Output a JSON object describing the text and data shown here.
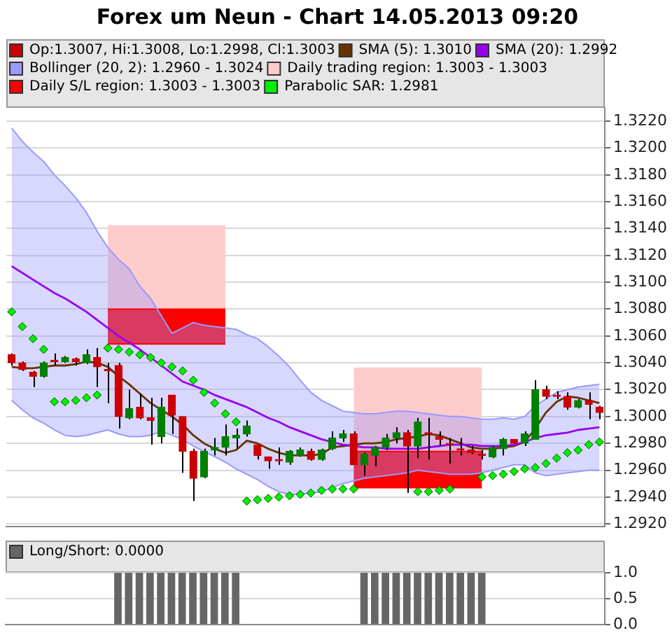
{
  "chart_data": [
    {
      "type": "candlestick",
      "title": "Forex um Neun - Chart 14.05.2013 09:20",
      "categories": [
        null,
        null,
        null,
        null,
        null,
        null,
        null,
        null,
        null,
        null,
        null,
        null,
        null,
        null,
        null,
        null,
        null,
        null,
        null,
        null,
        null,
        null,
        null,
        null,
        null,
        null,
        null,
        null,
        null,
        null,
        null,
        null,
        null,
        null,
        null,
        null,
        null,
        null,
        null,
        null,
        null,
        null,
        null,
        null,
        null,
        null,
        null,
        null,
        null,
        null,
        null,
        null,
        null,
        null,
        null,
        null
      ],
      "ylim": [
        1.2918,
        1.323
      ],
      "yticks": [
        {
          "value": 1.292,
          "label": "1.2920"
        },
        {
          "value": 1.294,
          "label": "1.2940"
        },
        {
          "value": 1.296,
          "label": "1.2960"
        },
        {
          "value": 1.298,
          "label": "1.2980"
        },
        {
          "value": 1.3,
          "label": "1.3000"
        },
        {
          "value": 1.302,
          "label": "1.3020"
        },
        {
          "value": 1.304,
          "label": "1.3040"
        },
        {
          "value": 1.306,
          "label": "1.3060"
        },
        {
          "value": 1.308,
          "label": "1.3080"
        },
        {
          "value": 1.31,
          "label": "1.3100"
        },
        {
          "value": 1.312,
          "label": "1.3120"
        },
        {
          "value": 1.314,
          "label": "1.3140"
        },
        {
          "value": 1.316,
          "label": "1.3160"
        },
        {
          "value": 1.318,
          "label": "1.3180"
        },
        {
          "value": 1.32,
          "label": "1.3200"
        },
        {
          "value": 1.322,
          "label": "1.3220"
        }
      ],
      "grid": "y",
      "legend": "top left",
      "tick_labels": "y",
      "series": [
        {
          "name": "Op:1.3007, Hi:1.3008, Lo:1.2998, Cl:1.3003",
          "color": "#cc0000",
          "colors": [
            "#cc0000",
            "#cc0000",
            "#cc0000",
            "#008000",
            "#cc0000",
            "#008000",
            "#cc0000",
            "#008000",
            "#cc0000",
            "#cc0000",
            "#cc0000",
            "#008000",
            "#cc0000",
            "#cc0000",
            "#008000",
            "#cc0000",
            "#cc0000",
            "#cc0000",
            "#008000",
            "#008000",
            "#008000",
            "#008000",
            "#008000",
            "#cc0000",
            "#cc0000",
            "#cc0000",
            "#008000",
            "#008000",
            "#cc0000",
            "#008000",
            "#008000",
            "#008000",
            "#cc0000",
            "#008000",
            "#008000",
            "#008000",
            "#008000",
            "#cc0000",
            "#008000",
            "#cc0000",
            "#cc0000",
            "#cc0000",
            "#cc0000",
            "#cc0000",
            "#cc0000",
            "#008000",
            "#008000",
            "#cc0000",
            "#008000",
            "#008000",
            "#cc0000",
            "#cc0000",
            "#cc0000",
            "#008000",
            "#cc0000",
            "#cc0000"
          ],
          "ohlc": [
            [
              1.3046,
              1.3047,
              1.3038,
              1.304
            ],
            [
              1.304,
              1.3041,
              1.3034,
              1.3035
            ],
            [
              1.3033,
              1.3034,
              1.3022,
              1.303
            ],
            [
              1.303,
              1.3041,
              1.3029,
              1.304
            ],
            [
              1.3042,
              1.3047,
              1.3038,
              1.3041
            ],
            [
              1.3041,
              1.3045,
              1.304,
              1.3044
            ],
            [
              1.3043,
              1.3044,
              1.3038,
              1.3041
            ],
            [
              1.304,
              1.305,
              1.3039,
              1.3046
            ],
            [
              1.3044,
              1.3051,
              1.3022,
              1.3037
            ],
            [
              1.3035,
              1.304,
              1.301,
              1.3034
            ],
            [
              1.3038,
              1.304,
              1.2991,
              1.3
            ],
            [
              1.2999,
              1.302,
              1.2998,
              1.3006
            ],
            [
              1.3007,
              1.3017,
              1.2998,
              1.2999
            ],
            [
              1.2999,
              1.3014,
              1.2979,
              1.2997
            ],
            [
              1.2985,
              1.3014,
              1.298,
              1.3007
            ],
            [
              1.3016,
              1.3016,
              1.2987,
              1.3001
            ],
            [
              1.3,
              1.3,
              1.2958,
              1.2974
            ],
            [
              1.2974,
              1.2976,
              1.2937,
              1.2954
            ],
            [
              1.2955,
              1.2976,
              1.2954,
              1.2974
            ],
            [
              1.2975,
              1.2984,
              1.2971,
              1.2977
            ],
            [
              1.2977,
              1.2994,
              1.2971,
              1.2985
            ],
            [
              1.2984,
              1.2991,
              1.2976,
              1.2986
            ],
            [
              1.2987,
              1.2997,
              1.2985,
              1.2993
            ],
            [
              1.2979,
              1.2979,
              1.2968,
              1.2971
            ],
            [
              1.297,
              1.297,
              1.2961,
              1.2967
            ],
            [
              1.2968,
              1.2977,
              1.2964,
              1.2967
            ],
            [
              1.2966,
              1.2975,
              1.2964,
              1.2974
            ],
            [
              1.2971,
              1.2977,
              1.297,
              1.2975
            ],
            [
              1.2974,
              1.2976,
              1.2967,
              1.2968
            ],
            [
              1.2968,
              1.2976,
              1.2967,
              1.2975
            ],
            [
              1.2976,
              1.2989,
              1.2975,
              1.2984
            ],
            [
              1.2984,
              1.299,
              1.2981,
              1.2987
            ],
            [
              1.2987,
              1.2989,
              1.2964,
              1.2964
            ],
            [
              1.2964,
              1.2973,
              1.2956,
              1.2972
            ],
            [
              1.2971,
              1.2978,
              1.2963,
              1.2977
            ],
            [
              1.2977,
              1.2987,
              1.2975,
              1.2984
            ],
            [
              1.2984,
              1.2992,
              1.298,
              1.2988
            ],
            [
              1.2988,
              1.299,
              1.2943,
              1.2978
            ],
            [
              1.2978,
              1.2999,
              1.2969,
              1.2996
            ],
            [
              1.2988,
              1.2999,
              1.2968,
              1.2987
            ],
            [
              1.2985,
              1.2989,
              1.2978,
              1.2983
            ],
            [
              1.298,
              1.2984,
              1.2965,
              1.2979
            ],
            [
              1.2976,
              1.2984,
              1.2971,
              1.2975
            ],
            [
              1.2975,
              1.2978,
              1.2972,
              1.2973
            ],
            [
              1.2972,
              1.2975,
              1.2968,
              1.2971
            ],
            [
              1.297,
              1.2978,
              1.2969,
              1.2977
            ],
            [
              1.2976,
              1.2984,
              1.2971,
              1.2983
            ],
            [
              1.2983,
              1.2983,
              1.298,
              1.298
            ],
            [
              1.298,
              1.2989,
              1.2978,
              1.2987
            ],
            [
              1.2983,
              1.3027,
              1.2983,
              1.302
            ],
            [
              1.302,
              1.3023,
              1.3013,
              1.3015
            ],
            [
              1.3016,
              1.3019,
              1.3013,
              1.3015
            ],
            [
              1.3015,
              1.3018,
              1.3005,
              1.3007
            ],
            [
              1.3007,
              1.3013,
              1.3006,
              1.3012
            ],
            [
              1.3012,
              1.3018,
              1.2998,
              1.3009
            ],
            [
              1.3007,
              1.3008,
              1.2998,
              1.3003
            ]
          ]
        },
        {
          "name": "SMA (5): 1.3010",
          "type": "line",
          "color": "#663300",
          "values": [
            1.3037,
            1.3036,
            1.3036,
            1.3037,
            1.3038,
            1.3038,
            1.3039,
            1.3041,
            1.304,
            1.3037,
            1.303,
            1.3024,
            1.3017,
            1.301,
            1.3005,
            1.3,
            1.2994,
            1.2986,
            1.298,
            1.2976,
            1.2973,
            1.2975,
            1.2982,
            1.298,
            1.2976,
            1.2973,
            1.2971,
            1.2971,
            1.2971,
            1.2972,
            1.2977,
            1.2978,
            1.2979,
            1.298,
            1.298,
            1.2981,
            1.2983,
            1.2984,
            1.2985,
            1.2987,
            1.2986,
            1.2983,
            1.298,
            1.2977,
            1.2976,
            1.2976,
            1.2977,
            1.2978,
            1.2981,
            1.2991,
            1.3003,
            1.3011,
            1.3015,
            1.3014,
            1.3012,
            1.301
          ]
        },
        {
          "name": "SMA (20): 1.2992",
          "type": "line",
          "color": "#9900ee",
          "values": [
            1.3112,
            1.3107,
            1.3102,
            1.3097,
            1.3092,
            1.3088,
            1.3083,
            1.3078,
            1.3072,
            1.3066,
            1.306,
            1.3055,
            1.305,
            1.3044,
            1.3038,
            1.3032,
            1.3026,
            1.3023,
            1.302,
            1.3016,
            1.3013,
            1.301,
            1.3007,
            1.3003,
            1.2999,
            1.2996,
            1.2992,
            1.2989,
            1.2986,
            1.2983,
            1.2981,
            1.2979,
            1.2978,
            1.2977,
            1.2977,
            1.2976,
            1.2976,
            1.2976,
            1.2976,
            1.2977,
            1.2978,
            1.2979,
            1.2979,
            1.2979,
            1.2978,
            1.2978,
            1.2978,
            1.2979,
            1.2981,
            1.2984,
            1.2986,
            1.2987,
            1.2988,
            1.299,
            1.2991,
            1.2992
          ]
        },
        {
          "type": "line",
          "color": "#9999ff",
          "values": [
            1.3012,
            1.3005,
            1.2999,
            1.2995,
            1.299,
            1.2986,
            1.2985,
            1.2986,
            1.2988,
            1.299,
            1.2987,
            1.2985,
            1.2985,
            1.2986,
            1.2989,
            1.2986,
            1.2983,
            1.2978,
            1.2974,
            1.297,
            1.2966,
            1.2961,
            1.2957,
            1.2953,
            1.2948,
            1.2944,
            1.2942,
            1.2942,
            1.2943,
            1.2944,
            1.2947,
            1.295,
            1.2952,
            1.2954,
            1.2955,
            1.2956,
            1.2957,
            1.2958,
            1.296,
            1.2959,
            1.2958,
            1.2957,
            1.2957,
            1.2957,
            1.2958,
            1.296,
            1.2962,
            1.2964,
            1.2964,
            1.2958,
            1.2956,
            1.2957,
            1.2958,
            1.2959,
            1.296,
            1.296
          ]
        },
        {
          "name": "Bollinger (20, 2): 1.2960 - 1.3024",
          "type": "area",
          "color": "#9999ff",
          "values": [
            1.3215,
            1.3205,
            1.3197,
            1.319,
            1.318,
            1.3172,
            1.3163,
            1.3152,
            1.3138,
            1.3126,
            1.3117,
            1.311,
            1.3097,
            1.3088,
            1.3075,
            1.3062,
            1.3066,
            1.307,
            1.3068,
            1.3067,
            1.3066,
            1.3065,
            1.3061,
            1.3058,
            1.3052,
            1.3045,
            1.3037,
            1.3027,
            1.3018,
            1.3012,
            1.3008,
            1.3004,
            1.3003,
            1.3002,
            1.3002,
            1.3003,
            1.3004,
            1.3004,
            1.3003,
            1.3002,
            1.3001,
            1.3,
            1.3,
            1.2999,
            1.2998,
            1.2998,
            1.2999,
            1.2998,
            1.3,
            1.3008,
            1.3013,
            1.3018,
            1.302,
            1.3022,
            1.3023,
            1.3024
          ]
        },
        {
          "name": "Daily trading region: 1.3003 - 1.3003",
          "type": "area",
          "color": "#ffcccc",
          "values": [
            null,
            null,
            null,
            null,
            null,
            null,
            null,
            null,
            null,
            1.3142,
            1.3142,
            1.3142,
            1.3142,
            1.3142,
            1.3142,
            1.3142,
            1.3142,
            1.3142,
            1.3142,
            1.3142,
            1.3142,
            null,
            null,
            null,
            null,
            null,
            null,
            null,
            null,
            null,
            null,
            null,
            1.3036,
            1.3036,
            1.3036,
            1.3036,
            1.3036,
            1.3036,
            1.3036,
            1.3036,
            1.3036,
            1.3036,
            1.3036,
            1.3036,
            1.3036,
            null,
            null,
            null,
            null,
            null,
            null,
            null,
            null,
            null,
            null,
            null
          ]
        },
        {
          "type": "line",
          "color": "#ff0000",
          "values": [
            null,
            null,
            null,
            null,
            null,
            null,
            null,
            null,
            null,
            1.3054,
            1.3054,
            1.3054,
            1.3054,
            1.3054,
            1.3054,
            1.3054,
            1.3054,
            1.3054,
            1.3054,
            1.3054,
            1.3054,
            null,
            null,
            null,
            null,
            null,
            null,
            null,
            null,
            null,
            null,
            null,
            1.2947,
            1.2947,
            1.2947,
            1.2947,
            1.2947,
            1.2947,
            1.2947,
            1.2947,
            1.2947,
            1.2947,
            1.2947,
            1.2947,
            1.2947,
            null,
            null,
            null,
            null,
            null,
            null,
            null,
            null,
            null,
            null,
            null
          ]
        },
        {
          "name": "Daily S/L region: 1.3003 - 1.3003",
          "type": "area",
          "color": "#ff0000",
          "values": [
            null,
            null,
            null,
            null,
            null,
            null,
            null,
            null,
            null,
            1.308,
            1.308,
            1.308,
            1.308,
            1.308,
            1.308,
            1.308,
            1.308,
            1.308,
            1.308,
            1.308,
            1.308,
            null,
            null,
            null,
            null,
            null,
            null,
            null,
            null,
            null,
            null,
            null,
            1.2974,
            1.2974,
            1.2974,
            1.2974,
            1.2974,
            1.2974,
            1.2974,
            1.2974,
            1.2974,
            1.2974,
            1.2974,
            1.2974,
            1.2974,
            null,
            null,
            null,
            null,
            null,
            null,
            null,
            null,
            null,
            null,
            null
          ]
        },
        {
          "name": "Parabolic SAR: 1.2981",
          "type": "scatter",
          "color": "#00ee00",
          "marker": "diamond",
          "values": [
            1.3078,
            1.3067,
            1.3058,
            1.305,
            1.3011,
            1.3011,
            1.3012,
            1.3014,
            1.3016,
            1.3051,
            1.305,
            1.3048,
            1.3046,
            1.3044,
            1.304,
            1.3037,
            1.3034,
            1.3027,
            1.3018,
            1.301,
            1.3002,
            1.2996,
            1.2937,
            1.2938,
            1.2939,
            1.294,
            1.2941,
            1.2942,
            1.2943,
            1.2945,
            1.2946,
            1.2946,
            1.2946,
            null,
            null,
            null,
            null,
            null,
            1.2944,
            1.2944,
            1.2945,
            1.2946,
            null,
            null,
            1.2955,
            1.2956,
            1.2957,
            1.2959,
            1.2961,
            1.2962,
            1.2965,
            1.2969,
            1.2973,
            1.2975,
            1.2979,
            1.2981
          ]
        }
      ]
    },
    {
      "type": "bar",
      "categories": [
        null,
        null,
        null,
        null,
        null,
        null,
        null,
        null,
        null,
        null,
        null,
        null,
        null,
        null,
        null,
        null,
        null,
        null,
        null,
        null,
        null,
        null,
        null,
        null,
        null,
        null,
        null,
        null,
        null,
        null,
        null,
        null,
        null,
        null,
        null,
        null,
        null,
        null,
        null,
        null,
        null,
        null,
        null,
        null,
        null,
        null,
        null,
        null,
        null,
        null,
        null,
        null,
        null,
        null,
        null,
        null
      ],
      "ylim": [
        0,
        1
      ],
      "yticks": [
        {
          "value": 0,
          "label": "0.0"
        },
        {
          "value": 0.5,
          "label": "0.5"
        },
        {
          "value": 1,
          "label": "1.0"
        }
      ],
      "grid": "y",
      "legend": "top left",
      "tick_labels": "y",
      "series": [
        {
          "name": "Long/Short: 0.0000",
          "color": "#666666",
          "values": [
            0,
            0,
            0,
            0,
            0,
            0,
            0,
            0,
            0,
            0,
            1,
            1,
            1,
            1,
            1,
            1,
            1,
            1,
            1,
            1,
            1,
            1,
            0,
            0,
            0,
            0,
            0,
            0,
            0,
            0,
            0,
            0,
            0,
            1,
            1,
            1,
            1,
            1,
            1,
            1,
            1,
            1,
            1,
            1,
            1,
            0,
            0,
            0,
            0,
            0,
            0,
            0,
            0,
            0,
            0,
            0
          ]
        }
      ]
    }
  ]
}
